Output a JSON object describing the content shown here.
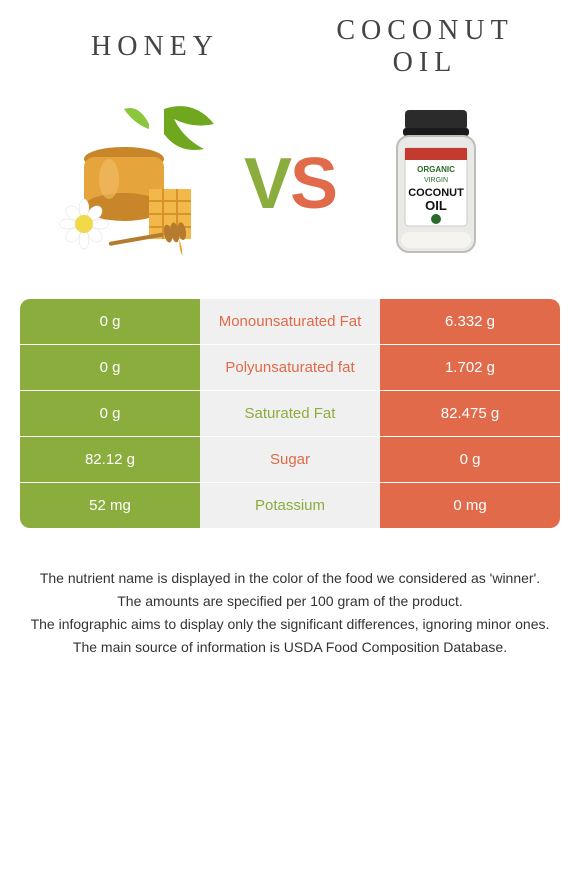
{
  "header": {
    "left_title": "HONEY",
    "right_title": "COCONUT OIL",
    "vs_label": "VS"
  },
  "colors": {
    "left": "#8aad3e",
    "right": "#e06a4a",
    "mid_bg": "#f0f0f0",
    "bg": "#ffffff",
    "text": "#333333"
  },
  "jar_label": {
    "line1": "ORGANIC",
    "line2": "VIRGIN",
    "line3": "COCONUT",
    "line4": "OIL"
  },
  "table": {
    "rows": [
      {
        "left": "0 g",
        "label": "Monounsaturated Fat",
        "right": "6.332 g",
        "winner": "right"
      },
      {
        "left": "0 g",
        "label": "Polyunsaturated fat",
        "right": "1.702 g",
        "winner": "right"
      },
      {
        "left": "0 g",
        "label": "Saturated Fat",
        "right": "82.475 g",
        "winner": "left"
      },
      {
        "left": "82.12 g",
        "label": "Sugar",
        "right": "0 g",
        "winner": "right"
      },
      {
        "left": "52 mg",
        "label": "Potassium",
        "right": "0 mg",
        "winner": "left"
      }
    ]
  },
  "footer": {
    "line1": "The nutrient name is displayed in the color of the food we considered as 'winner'.",
    "line2": "The amounts are specified per 100 gram of the product.",
    "line3": "The infographic aims to display only the significant differences, ignoring minor ones.",
    "line4": "The main source of information is USDA Food Composition Database."
  },
  "style": {
    "title_fontsize": 28,
    "title_letterspacing": 6,
    "vs_fontsize": 72,
    "cell_fontsize": 15,
    "footer_fontsize": 14,
    "table_radius": 10
  }
}
